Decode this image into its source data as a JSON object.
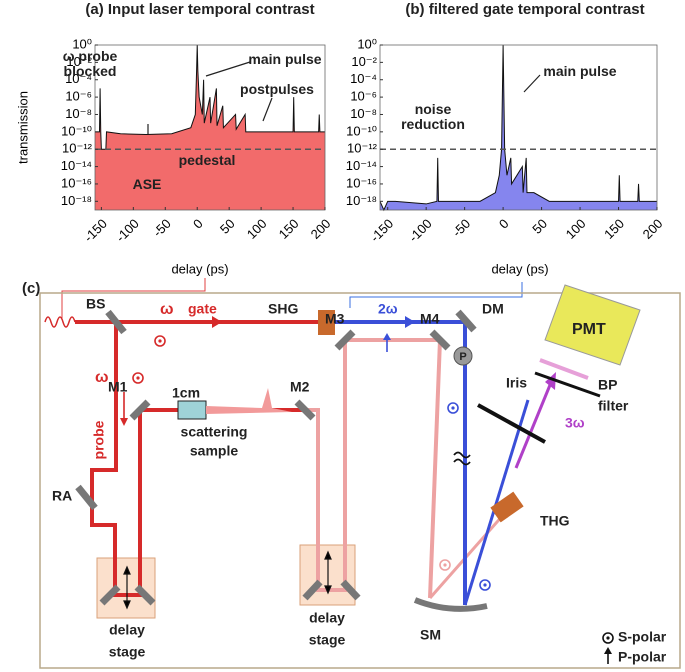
{
  "charts": [
    {
      "chart_data": {
        "type": "area",
        "title": "(a) Input laser temporal contrast",
        "y_label": "transmission",
        "x_label": "delay (ps)",
        "log_y": true,
        "color": "#f26b6b",
        "line_color": "#111111",
        "x": [
          -160,
          -153,
          -152,
          -151,
          -150,
          -143,
          -142,
          -120,
          -80,
          -40,
          -10,
          -3,
          -1,
          0,
          1,
          3,
          8,
          10,
          11,
          20,
          21,
          30,
          31,
          40,
          41,
          60,
          61,
          75,
          76,
          150,
          151,
          152,
          190,
          191,
          192,
          200
        ],
        "values": [
          1e-10,
          1e-10,
          1e-05,
          1e-10,
          1e-12,
          1e-12,
          1e-10,
          6e-11,
          5e-11,
          6e-11,
          3e-10,
          1e-08,
          0.001,
          1,
          0.001,
          1e-06,
          1e-08,
          0.0001,
          1e-09,
          1e-06,
          1e-09,
          1e-05,
          5e-10,
          1e-07,
          3e-10,
          1e-08,
          2e-10,
          1e-08,
          1e-10,
          1e-10,
          1e-06,
          1e-10,
          1e-10,
          1e-08,
          1e-10,
          1e-10
        ],
        "reference_line": 1e-12,
        "xlim": [
          -160,
          200
        ],
        "xticks": [
          -150,
          -100,
          -50,
          0,
          50,
          100,
          150,
          200
        ],
        "ylim": [
          1e-19,
          1
        ],
        "yticks": [
          {
            "value": 1,
            "label": "10⁰"
          },
          {
            "value": 0.01,
            "label": "10⁻²"
          },
          {
            "value": 0.0001,
            "label": "10⁻⁴"
          },
          {
            "value": 1e-06,
            "label": "10⁻⁶"
          },
          {
            "value": 1e-08,
            "label": "10⁻⁸"
          },
          {
            "value": 1e-10,
            "label": "10⁻¹⁰"
          },
          {
            "value": 1e-12,
            "label": "10⁻¹²"
          },
          {
            "value": 1e-14,
            "label": "10⁻¹⁴"
          },
          {
            "value": 1e-16,
            "label": "10⁻¹⁶"
          },
          {
            "value": 1e-18,
            "label": "10⁻¹⁸"
          }
        ],
        "annotations": [
          "ω probe blocked",
          "main pulse",
          "postpulses",
          "pedestal",
          "ASE"
        ]
      }
    },
    {
      "chart_data": {
        "type": "area",
        "title": "(b) filtered gate temporal contrast",
        "x_label": "delay (ps)",
        "log_y": true,
        "color": "#8585ee",
        "line_color": "#111111",
        "x": [
          -160,
          -155,
          -150,
          -140,
          -100,
          -86,
          -85,
          -84,
          -60,
          -30,
          -10,
          -5,
          -2,
          -1,
          0,
          1,
          2,
          5,
          10,
          11,
          25,
          26,
          30,
          31,
          40,
          60,
          100,
          150,
          151,
          152,
          175,
          176,
          177,
          200
        ],
        "values": [
          1e-18,
          1e-19,
          1e-18,
          1e-18,
          5e-19,
          1e-18,
          1e-13,
          1e-18,
          1e-18,
          1e-18,
          1e-17,
          1e-15,
          1e-12,
          1e-06,
          1,
          1e-06,
          1e-12,
          1e-15,
          1e-13,
          1e-16,
          1e-14,
          1e-17,
          1e-13,
          1e-17,
          1e-17,
          1e-18,
          1e-18,
          1e-18,
          1e-15,
          1e-18,
          1e-18,
          1e-16,
          1e-18,
          1e-18
        ],
        "reference_line": 1e-12,
        "xlim": [
          -160,
          200
        ],
        "xticks": [
          -150,
          -100,
          -50,
          0,
          50,
          100,
          150,
          200
        ],
        "ylim": [
          1e-19,
          1
        ],
        "yticks": [
          {
            "value": 1,
            "label": "10⁰"
          },
          {
            "value": 0.01,
            "label": "10⁻²"
          },
          {
            "value": 0.0001,
            "label": "10⁻⁴"
          },
          {
            "value": 1e-06,
            "label": "10⁻⁶"
          },
          {
            "value": 1e-08,
            "label": "10⁻⁸"
          },
          {
            "value": 1e-10,
            "label": "10⁻¹⁰"
          },
          {
            "value": 1e-12,
            "label": "10⁻¹²"
          },
          {
            "value": 1e-14,
            "label": "10⁻¹⁴"
          },
          {
            "value": 1e-16,
            "label": "10⁻¹⁶"
          },
          {
            "value": 1e-18,
            "label": "10⁻¹⁸"
          }
        ],
        "annotations": [
          "main pulse",
          "noise reduction"
        ]
      }
    }
  ],
  "diagram": {
    "panel": "(c)",
    "labels": {
      "bs": "BS",
      "omega_gate": "ω",
      "gate": "gate",
      "shg": "SHG",
      "two_omega": "2ω",
      "dm": "DM",
      "p": "P",
      "pmt": "PMT",
      "iris": "Iris",
      "bp": "BP",
      "filter": "filter",
      "three_omega": "3ω",
      "thg": "THG",
      "sm": "SM",
      "m1": "M1",
      "m2": "M2",
      "m3": "M3",
      "m4": "M4",
      "omega_probe": "ω",
      "probe": "probe",
      "ra": "RA",
      "cm": "1cm",
      "scattering": "scattering",
      "sample": "sample",
      "delay1": "delay",
      "stage1": "stage",
      "delay2": "delay",
      "stage2": "stage",
      "s_polar": "S-polar",
      "p_polar": "P-polar"
    }
  }
}
